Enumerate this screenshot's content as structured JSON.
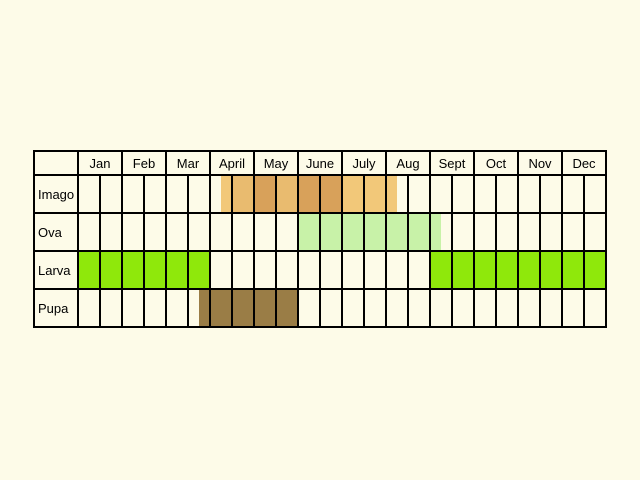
{
  "chart_data": {
    "type": "table",
    "months": [
      "Jan",
      "Feb",
      "Mar",
      "April",
      "May",
      "June",
      "July",
      "Aug",
      "Sept",
      "Oct",
      "Nov",
      "Dec"
    ],
    "rows": [
      {
        "label": "Imago",
        "segments": [
          {
            "start": 3.25,
            "end": 3.5,
            "color": "#f2c879"
          },
          {
            "start": 3.5,
            "end": 4.0,
            "color": "#e9bb6f"
          },
          {
            "start": 4.0,
            "end": 4.5,
            "color": "#d8a15a"
          },
          {
            "start": 4.5,
            "end": 5.0,
            "color": "#e9bb6f"
          },
          {
            "start": 5.0,
            "end": 5.5,
            "color": "#d8a15a"
          },
          {
            "start": 5.5,
            "end": 6.0,
            "color": "#d8a15a"
          },
          {
            "start": 6.0,
            "end": 7.0,
            "color": "#f2c879"
          },
          {
            "start": 7.0,
            "end": 7.25,
            "color": "#f2c879"
          }
        ]
      },
      {
        "label": "Ova",
        "segments": [
          {
            "start": 5.0,
            "end": 8.25,
            "color": "#c8f2a8"
          }
        ]
      },
      {
        "label": "Larva",
        "segments": [
          {
            "start": 0.0,
            "end": 3.0,
            "color": "#8fe80b"
          },
          {
            "start": 8.0,
            "end": 12.0,
            "color": "#8fe80b"
          }
        ]
      },
      {
        "label": "Pupa",
        "segments": [
          {
            "start": 2.75,
            "end": 5.0,
            "color": "#9a7d46"
          }
        ]
      }
    ]
  },
  "colors": {
    "background": "#fdfbe8",
    "grid_line": "#000000"
  }
}
